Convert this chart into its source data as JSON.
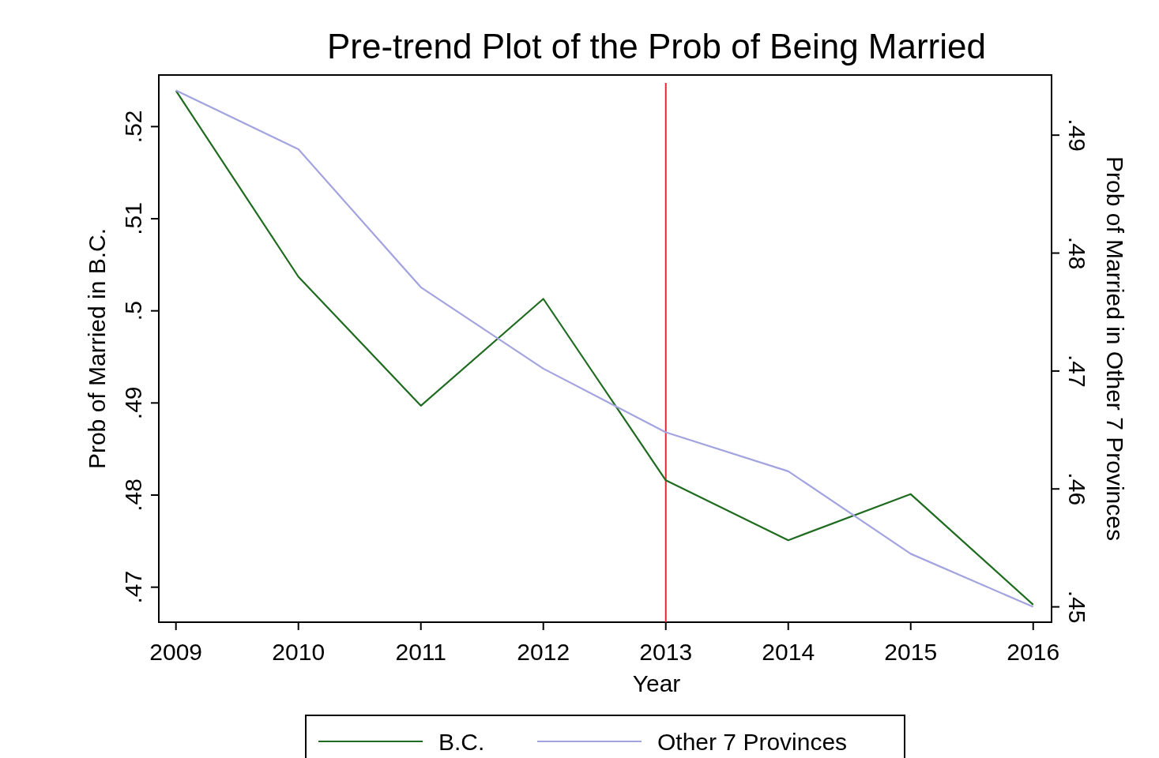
{
  "chart_data": {
    "type": "line",
    "title": "Pre-trend Plot of the Prob of Being Married",
    "xlabel": "Year",
    "ylabel": "Prob of Married in B.C.",
    "y2label": "Prob of Married in Other 7 Provinces",
    "x": [
      2009,
      2010,
      2011,
      2012,
      2013,
      2014,
      2015,
      2016
    ],
    "xlim": [
      2008.86,
      2016.15
    ],
    "xticks": [
      2009,
      2010,
      2011,
      2012,
      2013,
      2014,
      2015,
      2016
    ],
    "ylim": [
      0.4662,
      0.5256
    ],
    "yticks": [
      {
        "value": 0.47,
        "label": ".47"
      },
      {
        "value": 0.48,
        "label": ".48"
      },
      {
        "value": 0.49,
        "label": ".49"
      },
      {
        "value": 0.5,
        "label": ".5"
      },
      {
        "value": 0.51,
        "label": ".51"
      },
      {
        "value": 0.52,
        "label": ".52"
      }
    ],
    "y2lim": [
      0.4487,
      0.4951
    ],
    "y2ticks": [
      {
        "value": 0.45,
        "label": ".45"
      },
      {
        "value": 0.46,
        "label": ".46"
      },
      {
        "value": 0.47,
        "label": ".47"
      },
      {
        "value": 0.48,
        "label": ".48"
      },
      {
        "value": 0.49,
        "label": ".49"
      }
    ],
    "series": [
      {
        "name": "B.C.",
        "color": "#1f6b1f",
        "values": [
          0.5239,
          0.5037,
          0.4897,
          0.5013,
          0.4816,
          0.4751,
          0.4801,
          0.4681
        ]
      },
      {
        "name": "Other 7 Provinces",
        "color": "#a3a3e0",
        "axis": "y2",
        "values": [
          0.4938,
          0.4888,
          0.4771,
          0.4702,
          0.4648,
          0.4615,
          0.4545,
          0.45
        ]
      }
    ],
    "ref_lines": [
      {
        "axis": "x",
        "value": 2013,
        "color": "#e0282e"
      }
    ],
    "legend": "bottom",
    "grid": false,
    "marker": "none",
    "line_style": "solid"
  }
}
